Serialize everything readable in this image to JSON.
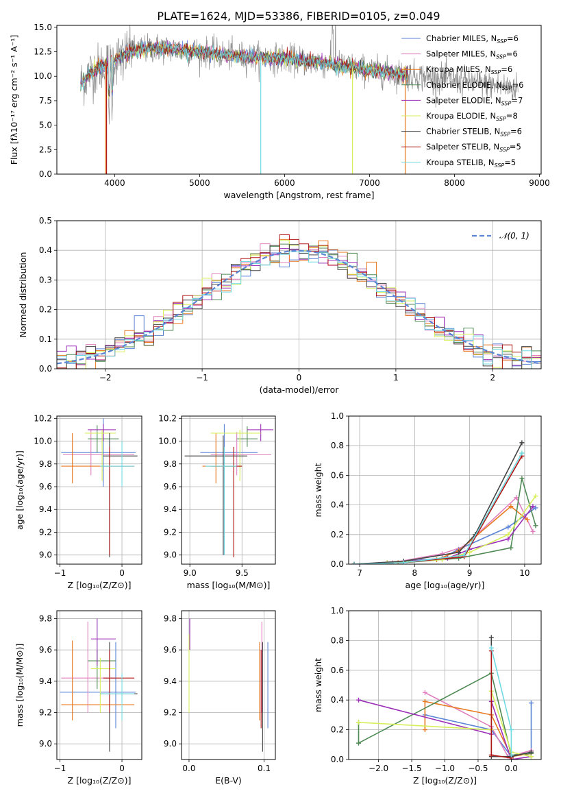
{
  "figure_title": "PLATE=1624, MJD=53386, FIBERID=0105, z=0.049",
  "colors": {
    "Chabrier MILES": "#5b84d6",
    "Salpeter MILES": "#e07fbe",
    "Kroupa MILES": "#e8781e",
    "Chabrier ELODIE": "#4f8a55",
    "Salpeter ELODIE": "#9b2fb8",
    "Kroupa ELODIE": "#d6ef5a",
    "Chabrier STELIB": "#444444",
    "Salpeter STELIB": "#b01616",
    "Kroupa STELIB": "#6fd9e0"
  },
  "legend_spectrum": [
    {
      "name": "Chabrier MILES",
      "nssp": "6"
    },
    {
      "name": "Salpeter MILES",
      "nssp": "6"
    },
    {
      "name": "Kroupa MILES",
      "nssp": "6"
    },
    {
      "name": "Chabrier ELODIE",
      "nssp": "6"
    },
    {
      "name": "Salpeter ELODIE",
      "nssp": "7"
    },
    {
      "name": "Kroupa ELODIE",
      "nssp": "8"
    },
    {
      "name": "Chabrier STELIB",
      "nssp": "6"
    },
    {
      "name": "Salpeter STELIB",
      "nssp": "5"
    },
    {
      "name": "Kroupa STELIB",
      "nssp": "5"
    }
  ],
  "chart_data": [
    {
      "id": "spectrum",
      "type": "line",
      "xlabel": "wavelength [Angstrom, rest frame]",
      "ylabel": "Flux [fλ10⁻¹⁷ erg cm⁻² s⁻¹ A⁻¹]",
      "xlim": [
        3320,
        9020
      ],
      "ylim": [
        0,
        15.2
      ],
      "xticks": [
        4000,
        5000,
        6000,
        7000,
        8000,
        9000
      ],
      "yticks": [
        0.0,
        2.5,
        5.0,
        7.5,
        10.0,
        12.5,
        15.0
      ],
      "continuum": [
        [
          3600,
          9.2
        ],
        [
          3700,
          10.3
        ],
        [
          3800,
          10.8
        ],
        [
          3900,
          11.1
        ],
        [
          4000,
          11.7
        ],
        [
          4200,
          12.6
        ],
        [
          4500,
          12.9
        ],
        [
          5000,
          12.5
        ],
        [
          5500,
          12.0
        ],
        [
          6000,
          11.8
        ],
        [
          6500,
          11.3
        ],
        [
          7000,
          10.6
        ],
        [
          7500,
          10.1
        ],
        [
          8000,
          9.6
        ],
        [
          8500,
          9.0
        ],
        [
          8750,
          8.8
        ]
      ],
      "data_range": [
        3600,
        8750
      ],
      "model_range": [
        3600,
        7450
      ]
    },
    {
      "id": "residuals",
      "type": "histogram",
      "xlabel": "(data-model)/error",
      "ylabel": "Normed distribution",
      "xlim": [
        -2.5,
        2.5
      ],
      "ylim": [
        0,
        0.5
      ],
      "xticks": [
        -2,
        -1,
        0,
        1,
        2
      ],
      "yticks": [
        0.0,
        0.1,
        0.2,
        0.3,
        0.4,
        0.5
      ],
      "bin_width": 0.1,
      "normal_label": "𝒩(0, 1)",
      "legend_loc": "upper right"
    },
    {
      "id": "age_vs_Z",
      "type": "errorbar",
      "xlabel": "Z [log₁₀(Z/Z⊙)]",
      "ylabel": "age  [log₁₀(age/yr)]",
      "xlim": [
        -1.05,
        0.32
      ],
      "ylim": [
        8.92,
        10.22
      ],
      "xticks": [
        -1,
        0
      ],
      "yticks": [
        9.0,
        9.2,
        9.4,
        9.6,
        9.8,
        10.0,
        10.2
      ],
      "points": [
        {
          "m": "Chabrier MILES",
          "x": -0.3,
          "xl": -0.98,
          "xh": 0.22,
          "y": 9.9,
          "yl": 9.6,
          "yh": 10.2
        },
        {
          "m": "Salpeter MILES",
          "x": -0.5,
          "xl": -0.95,
          "xh": 0.2,
          "y": 9.88,
          "yl": 9.7,
          "yh": 10.1
        },
        {
          "m": "Kroupa MILES",
          "x": -0.8,
          "xl": -0.98,
          "xh": -0.3,
          "y": 9.78,
          "yl": 9.63,
          "yh": 10.07
        },
        {
          "m": "Chabrier ELODIE",
          "x": -0.4,
          "xl": -0.55,
          "xh": -0.05,
          "y": 10.02,
          "yl": 9.9,
          "yh": 10.14
        },
        {
          "m": "Salpeter ELODIE",
          "x": -0.3,
          "xl": -0.55,
          "xh": -0.1,
          "y": 10.1,
          "yl": 10.0,
          "yh": 10.15
        },
        {
          "m": "Kroupa ELODIE",
          "x": -0.32,
          "xl": -0.6,
          "xh": -0.1,
          "y": 10.07,
          "yl": 9.65,
          "yh": 10.1
        },
        {
          "m": "Chabrier STELIB",
          "x": -0.2,
          "xl": -0.3,
          "xh": 0.25,
          "y": 9.87,
          "yl": 8.98,
          "yh": 10.07
        },
        {
          "m": "Salpeter STELIB",
          "x": -0.2,
          "xl": -0.3,
          "xh": 0.2,
          "y": 9.78,
          "yl": 9.0,
          "yh": 9.95
        },
        {
          "m": "Kroupa STELIB",
          "x": 0.0,
          "xl": -0.35,
          "xh": 0.2,
          "y": 9.78,
          "yl": 9.6,
          "yh": 10.0
        }
      ]
    },
    {
      "id": "age_vs_mass",
      "type": "errorbar",
      "xlabel": "mass [log₁₀(M/M⊙)]",
      "ylabel": "",
      "xlim": [
        8.92,
        9.82
      ],
      "ylim": [
        8.92,
        10.22
      ],
      "xticks": [
        9.0,
        9.5
      ],
      "yticks": [
        9.0,
        9.2,
        9.4,
        9.6,
        9.8,
        10.0,
        10.2
      ],
      "points": [
        {
          "m": "Chabrier MILES",
          "x": 9.33,
          "xl": 9.1,
          "xh": 9.65,
          "y": 9.9,
          "yl": 9.0,
          "yh": 10.15
        },
        {
          "m": "Salpeter MILES",
          "x": 9.45,
          "xl": 9.2,
          "xh": 9.78,
          "y": 9.88,
          "yl": 9.7,
          "yh": 10.08
        },
        {
          "m": "Kroupa MILES",
          "x": 9.25,
          "xl": 9.12,
          "xh": 9.5,
          "y": 9.78,
          "yl": 9.63,
          "yh": 10.07
        },
        {
          "m": "Chabrier ELODIE",
          "x": 9.55,
          "xl": 9.45,
          "xh": 9.65,
          "y": 10.02,
          "yl": 9.95,
          "yh": 10.13
        },
        {
          "m": "Salpeter ELODIE",
          "x": 9.68,
          "xl": 9.55,
          "xh": 9.8,
          "y": 10.1,
          "yl": 10.0,
          "yh": 10.15
        },
        {
          "m": "Kroupa ELODIE",
          "x": 9.48,
          "xl": 9.2,
          "xh": 9.68,
          "y": 10.07,
          "yl": 9.65,
          "yh": 10.1
        },
        {
          "m": "Chabrier STELIB",
          "x": 9.32,
          "xl": 8.95,
          "xh": 9.55,
          "y": 9.87,
          "yl": 9.0,
          "yh": 10.05
        },
        {
          "m": "Salpeter STELIB",
          "x": 9.42,
          "xl": 9.2,
          "xh": 9.5,
          "y": 9.78,
          "yl": 8.98,
          "yh": 9.95
        },
        {
          "m": "Kroupa STELIB",
          "x": 9.33,
          "xl": 9.15,
          "xh": 9.45,
          "y": 9.78,
          "yl": 9.0,
          "yh": 9.95
        }
      ]
    },
    {
      "id": "weight_vs_age",
      "type": "line",
      "xlabel": "age  [log₁₀(age/yr)]",
      "ylabel": "mass weight",
      "xlim": [
        6.8,
        10.3
      ],
      "ylim": [
        0,
        1.0
      ],
      "xticks": [
        7,
        8,
        9,
        10
      ],
      "yticks": [
        0.0,
        0.2,
        0.4,
        0.6,
        0.8,
        1.0
      ],
      "series": [
        {
          "m": "Chabrier MILES",
          "x": [
            6.9,
            7.5,
            8.5,
            8.8,
            9.7,
            10.2
          ],
          "y": [
            0.0,
            0.01,
            0.04,
            0.1,
            0.25,
            0.38
          ]
        },
        {
          "m": "Salpeter MILES",
          "x": [
            6.9,
            7.6,
            8.5,
            8.9,
            9.85,
            10.15
          ],
          "y": [
            0.0,
            0.01,
            0.07,
            0.12,
            0.45,
            0.22
          ]
        },
        {
          "m": "Kroupa MILES",
          "x": [
            6.9,
            7.7,
            8.4,
            8.8,
            9.75,
            10.05
          ],
          "y": [
            0.0,
            0.01,
            0.03,
            0.09,
            0.39,
            0.3
          ]
        },
        {
          "m": "Chabrier ELODIE",
          "x": [
            6.9,
            7.8,
            8.8,
            9.75,
            9.95,
            10.2
          ],
          "y": [
            0.0,
            0.01,
            0.04,
            0.11,
            0.58,
            0.26
          ]
        },
        {
          "m": "Salpeter ELODIE",
          "x": [
            6.9,
            7.5,
            8.6,
            9.0,
            9.7,
            10.15
          ],
          "y": [
            0.0,
            0.01,
            0.04,
            0.1,
            0.17,
            0.39
          ]
        },
        {
          "m": "Kroupa ELODIE",
          "x": [
            6.9,
            7.5,
            8.5,
            9.0,
            9.7,
            10.2
          ],
          "y": [
            0.0,
            0.01,
            0.03,
            0.08,
            0.2,
            0.46
          ]
        },
        {
          "m": "Chabrier STELIB",
          "x": [
            6.9,
            7.8,
            8.8,
            9.1,
            9.95
          ],
          "y": [
            0.0,
            0.02,
            0.08,
            0.2,
            0.82
          ]
        },
        {
          "m": "Salpeter STELIB",
          "x": [
            6.9,
            7.8,
            8.9,
            9.95
          ],
          "y": [
            0.0,
            0.01,
            0.05,
            0.73
          ]
        },
        {
          "m": "Kroupa STELIB",
          "x": [
            6.9,
            7.8,
            8.9,
            9.95
          ],
          "y": [
            0.0,
            0.01,
            0.06,
            0.75
          ]
        }
      ]
    },
    {
      "id": "mass_vs_Z",
      "type": "errorbar",
      "xlabel": "Z [log₁₀(Z/Z⊙)]",
      "ylabel": "mass [log₁₀(M/M⊙)]",
      "xlim": [
        -1.05,
        0.32
      ],
      "ylim": [
        8.9,
        9.85
      ],
      "xticks": [
        -1,
        0
      ],
      "yticks": [
        9.0,
        9.2,
        9.4,
        9.6,
        9.8
      ],
      "points": [
        {
          "m": "Chabrier MILES",
          "x": -0.1,
          "xl": -1.0,
          "xh": 0.22,
          "y": 9.33,
          "yl": 9.1,
          "yh": 9.65
        },
        {
          "m": "Salpeter MILES",
          "x": -0.55,
          "xl": -0.98,
          "xh": -0.1,
          "y": 9.42,
          "yl": 9.2,
          "yh": 9.78
        },
        {
          "m": "Kroupa MILES",
          "x": -0.8,
          "xl": -0.98,
          "xh": 0.2,
          "y": 9.25,
          "yl": 9.15,
          "yh": 9.66
        },
        {
          "m": "Chabrier ELODIE",
          "x": -0.4,
          "xl": -0.55,
          "xh": -0.1,
          "y": 9.53,
          "yl": 9.35,
          "yh": 9.6
        },
        {
          "m": "Salpeter ELODIE",
          "x": -0.4,
          "xl": -0.5,
          "xh": -0.1,
          "y": 9.67,
          "yl": 9.5,
          "yh": 9.8
        },
        {
          "m": "Kroupa ELODIE",
          "x": -0.35,
          "xl": -0.5,
          "xh": -0.1,
          "y": 9.48,
          "yl": 9.2,
          "yh": 9.55
        },
        {
          "m": "Chabrier STELIB",
          "x": -0.2,
          "xl": -0.35,
          "xh": 0.25,
          "y": 9.32,
          "yl": 8.95,
          "yh": 9.65
        },
        {
          "m": "Salpeter STELIB",
          "x": -0.2,
          "xl": -0.3,
          "xh": 0.2,
          "y": 9.42,
          "yl": 9.2,
          "yh": 9.6
        },
        {
          "m": "Kroupa STELIB",
          "x": 0.0,
          "xl": -0.35,
          "xh": 0.2,
          "y": 9.32,
          "yl": 9.15,
          "yh": 9.45
        }
      ]
    },
    {
      "id": "mass_vs_ebv",
      "type": "errorbar",
      "xlabel": "E(B-V)",
      "ylabel": "",
      "xlim": [
        -0.01,
        0.115
      ],
      "ylim": [
        8.9,
        9.85
      ],
      "xticks": [
        0.0,
        0.1
      ],
      "yticks": [
        9.0,
        9.2,
        9.4,
        9.6,
        9.8
      ],
      "points": [
        {
          "m": "Chabrier MILES",
          "x": 0.105,
          "yl": 9.1,
          "yh": 9.65
        },
        {
          "m": "Salpeter MILES",
          "x": 0.097,
          "yl": 9.2,
          "yh": 9.78
        },
        {
          "m": "Kroupa MILES",
          "x": 0.094,
          "yl": 9.15,
          "yh": 9.65
        },
        {
          "m": "Salpeter ELODIE",
          "x": 0.001,
          "yl": 9.6,
          "yh": 9.8
        },
        {
          "m": "Kroupa ELODIE",
          "x": 0.0,
          "yl": 9.2,
          "yh": 9.7
        },
        {
          "m": "Chabrier STELIB",
          "x": 0.098,
          "yl": 8.95,
          "yh": 9.65
        },
        {
          "m": "Salpeter STELIB",
          "x": 0.096,
          "yl": 9.1,
          "yh": 9.6
        }
      ]
    },
    {
      "id": "weight_vs_Z",
      "type": "line",
      "xlabel": "Z [log₁₀(Z/Z⊙)]",
      "ylabel": "mass weight",
      "xlim": [
        -2.45,
        0.45
      ],
      "ylim": [
        0,
        1.0
      ],
      "xticks": [
        -2.0,
        -1.5,
        -1.0,
        -0.5,
        0.0
      ],
      "yticks": [
        0.0,
        0.2,
        0.4,
        0.6,
        0.8,
        1.0
      ],
      "series": [
        {
          "m": "Chabrier MILES",
          "x": [
            -1.3,
            -0.3,
            0.0,
            0.3,
            0.3
          ],
          "y": [
            0.3,
            0.2,
            0.02,
            0.05,
            0.38
          ]
        },
        {
          "m": "Salpeter MILES",
          "x": [
            -1.3,
            -0.3,
            -0.05,
            0.3
          ],
          "y": [
            0.45,
            0.22,
            0.02,
            0.06
          ]
        },
        {
          "m": "Kroupa MILES",
          "x": [
            -1.3,
            -1.3,
            -0.3,
            0.0,
            0.3
          ],
          "y": [
            0.2,
            0.39,
            0.3,
            0.02,
            0.04
          ]
        },
        {
          "m": "Chabrier ELODIE",
          "x": [
            -2.3,
            -2.3,
            -0.3,
            0.0,
            0.3
          ],
          "y": [
            0.25,
            0.11,
            0.58,
            0.03,
            0.04
          ]
        },
        {
          "m": "Salpeter ELODIE",
          "x": [
            -2.3,
            -0.3,
            -0.3,
            0.0,
            0.3
          ],
          "y": [
            0.4,
            0.17,
            0.39,
            0.0,
            0.02
          ]
        },
        {
          "m": "Kroupa ELODIE",
          "x": [
            -2.3,
            -0.3,
            -0.3,
            0.0,
            0.3
          ],
          "y": [
            0.25,
            0.2,
            0.46,
            0.05,
            0.02
          ]
        },
        {
          "m": "Chabrier STELIB",
          "x": [
            -0.3,
            -0.3,
            0.0,
            0.3
          ],
          "y": [
            0.82,
            0.02,
            0.02,
            0.05
          ]
        },
        {
          "m": "Salpeter STELIB",
          "x": [
            -0.3,
            -0.3,
            0.0
          ],
          "y": [
            0.73,
            0.03,
            0.01
          ]
        },
        {
          "m": "Kroupa STELIB",
          "x": [
            -0.3,
            0.0,
            0.0
          ],
          "y": [
            0.75,
            0.2,
            0.03
          ]
        }
      ]
    }
  ]
}
